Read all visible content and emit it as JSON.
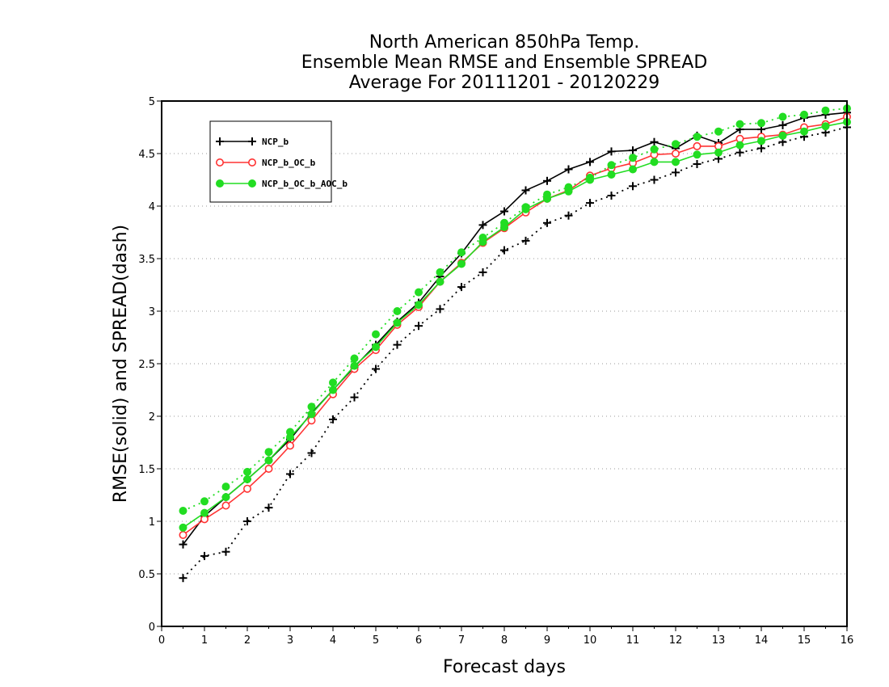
{
  "chart_data": {
    "type": "line",
    "title": [
      "North American 850hPa Temp.",
      "Ensemble Mean RMSE and Ensemble SPREAD",
      "Average For 20111201 - 20120229"
    ],
    "xlabel": "Forecast days",
    "ylabel": "RMSE(solid) and SPREAD(dash)",
    "xlim": [
      0,
      16
    ],
    "ylim": [
      0,
      5
    ],
    "xticks": [
      0,
      1,
      2,
      3,
      4,
      5,
      6,
      7,
      8,
      9,
      10,
      11,
      12,
      13,
      14,
      15,
      16
    ],
    "yticks": [
      0,
      0.5,
      1,
      1.5,
      2,
      2.5,
      3,
      3.5,
      4,
      4.5,
      5
    ],
    "grid": "horizontal-dotted",
    "legend_position": "top-left",
    "x": [
      0.5,
      1,
      1.5,
      2,
      2.5,
      3,
      3.5,
      4,
      4.5,
      5,
      5.5,
      6,
      6.5,
      7,
      7.5,
      8,
      8.5,
      9,
      9.5,
      10,
      10.5,
      11,
      11.5,
      12,
      12.5,
      13,
      13.5,
      14,
      14.5,
      15,
      15.5,
      16
    ],
    "series": [
      {
        "name": "NCP_b",
        "color": "#000000",
        "marker": "plus",
        "rmse": [
          0.78,
          1.05,
          1.23,
          1.4,
          1.58,
          1.78,
          2.03,
          2.25,
          2.47,
          2.68,
          2.9,
          3.08,
          3.33,
          3.55,
          3.82,
          3.95,
          4.15,
          4.24,
          4.35,
          4.42,
          4.52,
          4.53,
          4.61,
          4.55,
          4.67,
          4.6,
          4.73,
          4.73,
          4.77,
          4.84,
          4.87,
          4.89
        ],
        "spread": [
          0.46,
          0.67,
          0.71,
          1.0,
          1.13,
          1.45,
          1.65,
          1.97,
          2.18,
          2.45,
          2.68,
          2.86,
          3.02,
          3.23,
          3.37,
          3.58,
          3.67,
          3.84,
          3.91,
          4.03,
          4.1,
          4.19,
          4.25,
          4.32,
          4.4,
          4.45,
          4.51,
          4.55,
          4.61,
          4.66,
          4.7,
          4.75
        ]
      },
      {
        "name": "NCP_b_OC_b",
        "color": "#ff3333",
        "marker": "open-circle",
        "rmse": [
          0.87,
          1.02,
          1.15,
          1.31,
          1.5,
          1.72,
          1.96,
          2.21,
          2.45,
          2.63,
          2.87,
          3.04,
          3.28,
          3.46,
          3.65,
          3.79,
          3.94,
          4.07,
          4.15,
          4.29,
          4.36,
          4.41,
          4.49,
          4.5,
          4.57,
          4.57,
          4.64,
          4.66,
          4.68,
          4.75,
          4.78,
          4.85
        ]
      },
      {
        "name": "NCP_b_OC_b_AOC_b",
        "color": "#22dd22",
        "marker": "filled-circle",
        "rmse": [
          0.94,
          1.08,
          1.23,
          1.4,
          1.58,
          1.8,
          2.02,
          2.25,
          2.48,
          2.66,
          2.89,
          3.06,
          3.28,
          3.45,
          3.66,
          3.8,
          3.97,
          4.07,
          4.14,
          4.25,
          4.3,
          4.35,
          4.42,
          4.42,
          4.49,
          4.51,
          4.58,
          4.62,
          4.67,
          4.71,
          4.76,
          4.8
        ],
        "spread": [
          1.1,
          1.19,
          1.33,
          1.47,
          1.66,
          1.85,
          2.09,
          2.32,
          2.55,
          2.78,
          3.0,
          3.18,
          3.37,
          3.56,
          3.7,
          3.84,
          3.99,
          4.11,
          4.18,
          4.27,
          4.39,
          4.46,
          4.54,
          4.59,
          4.66,
          4.71,
          4.78,
          4.79,
          4.85,
          4.87,
          4.91,
          4.93
        ]
      }
    ]
  }
}
